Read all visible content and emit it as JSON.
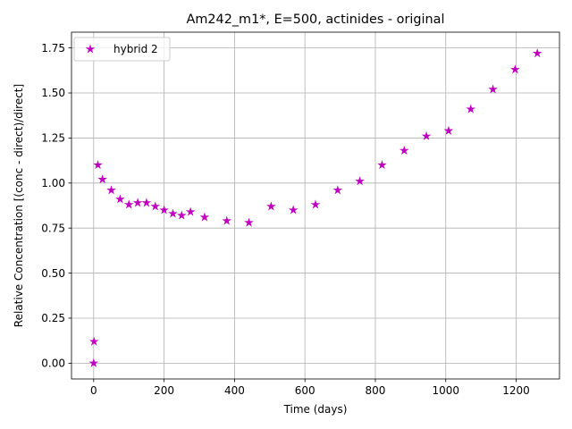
{
  "chart_data": {
    "type": "scatter",
    "title": "Am242_m1*, E=500, actinides - original",
    "xlabel": "Time (days)",
    "ylabel": "Relative Concentration [(conc - direct)/direct]",
    "xlim": [
      -63,
      1323
    ],
    "ylim": [
      -0.0875,
      1.8375
    ],
    "xticks": [
      0,
      200,
      400,
      600,
      800,
      1000,
      1200
    ],
    "yticks": [
      0.0,
      0.25,
      0.5,
      0.75,
      1.0,
      1.25,
      1.5,
      1.75
    ],
    "ytick_labels": [
      "0.00",
      "0.25",
      "0.50",
      "0.75",
      "1.00",
      "1.25",
      "1.50",
      "1.75"
    ],
    "grid": true,
    "legend_position": "upper-left",
    "series": [
      {
        "name": "hybrid 2",
        "color": "#bf00bf",
        "marker": "star",
        "x": [
          0,
          1,
          12,
          25,
          50,
          75,
          100,
          125,
          150,
          175,
          200,
          225,
          250,
          275,
          315,
          378,
          441,
          504,
          567,
          630,
          693,
          756,
          819,
          882,
          945,
          1008,
          1071,
          1134,
          1197,
          1260
        ],
        "y": [
          0.0,
          0.12,
          1.1,
          1.02,
          0.96,
          0.91,
          0.88,
          0.89,
          0.89,
          0.87,
          0.85,
          0.83,
          0.82,
          0.84,
          0.81,
          0.79,
          0.78,
          0.87,
          0.85,
          0.88,
          0.96,
          1.01,
          1.1,
          1.18,
          1.26,
          1.29,
          1.41,
          1.52,
          1.63,
          1.72
        ]
      }
    ]
  }
}
